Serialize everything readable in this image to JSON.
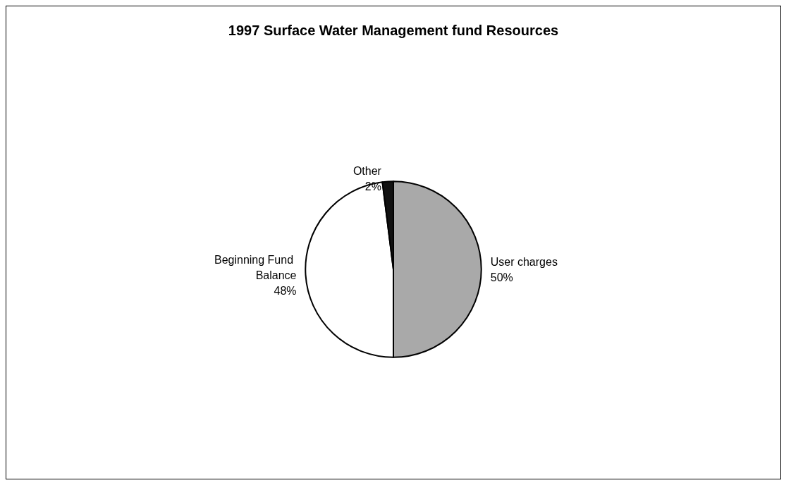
{
  "chart_data": {
    "type": "pie",
    "title": "1997 Surface Water Management fund Resources",
    "categories": [
      "User charges",
      "Beginning Fund Balance",
      "Other"
    ],
    "values": [
      50,
      48,
      2
    ],
    "value_labels": [
      "50%",
      "48%",
      "2%"
    ],
    "colors": [
      "#a9a9a9",
      "#ffffff",
      "#111111"
    ],
    "legend": false
  }
}
